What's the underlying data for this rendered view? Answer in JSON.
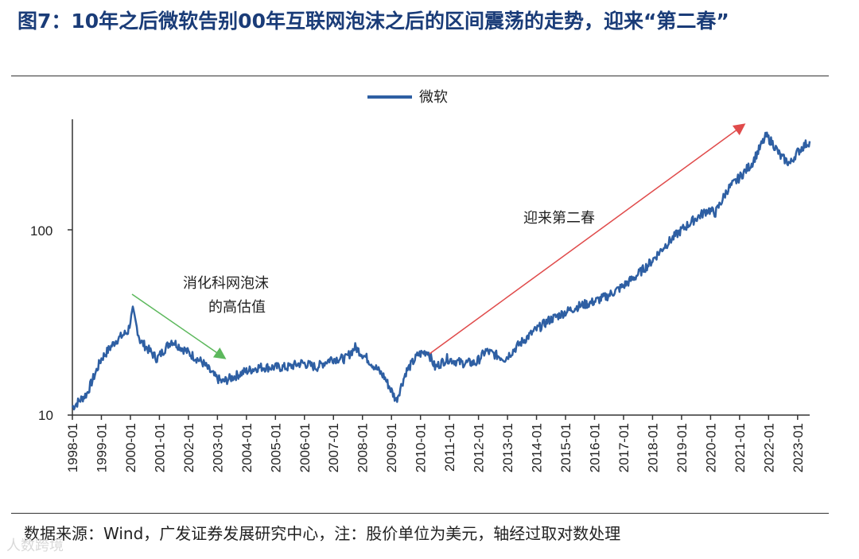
{
  "header": {
    "title": "图7：10年之后微软告别00年互联网泡沫之后的区间震荡的走势，迎来“第二春”"
  },
  "footer": {
    "source": "数据来源：Wind，广发证券发展研究中心，注：股价单位为美元，轴经过取对数处理",
    "watermark": "人数跨境"
  },
  "chart_data": {
    "type": "line",
    "title": "",
    "xlabel": "",
    "ylabel": "",
    "y_scale": "log",
    "ylim": [
      10,
      380
    ],
    "y_ticks": [
      "10",
      "100"
    ],
    "xlim": [
      "1998-01",
      "2023-06"
    ],
    "x_ticks": [
      "1998-01",
      "1999-01",
      "2000-01",
      "2001-01",
      "2002-01",
      "2003-01",
      "2004-01",
      "2005-01",
      "2006-01",
      "2007-01",
      "2008-01",
      "2009-01",
      "2010-01",
      "2011-01",
      "2012-01",
      "2013-01",
      "2014-01",
      "2015-01",
      "2016-01",
      "2017-01",
      "2018-01",
      "2019-01",
      "2020-01",
      "2021-01",
      "2022-01",
      "2023-01"
    ],
    "legend": {
      "position": "top-center",
      "entries": [
        "微软"
      ]
    },
    "series": [
      {
        "name": "微软",
        "color": "#2e5fa3",
        "x": [
          "1998-01",
          "1998-07",
          "1999-01",
          "1999-07",
          "1999-12",
          "2000-02",
          "2000-05",
          "2000-12",
          "2001-06",
          "2001-12",
          "2002-07",
          "2002-12",
          "2003-03",
          "2003-12",
          "2004-06",
          "2004-12",
          "2005-06",
          "2005-12",
          "2006-06",
          "2006-12",
          "2007-06",
          "2007-10",
          "2008-03",
          "2008-10",
          "2009-03",
          "2009-07",
          "2009-12",
          "2010-04",
          "2010-07",
          "2010-12",
          "2011-06",
          "2011-12",
          "2012-04",
          "2012-12",
          "2013-06",
          "2013-12",
          "2014-06",
          "2014-12",
          "2015-06",
          "2015-12",
          "2016-06",
          "2016-12",
          "2017-06",
          "2017-12",
          "2018-06",
          "2018-12",
          "2019-06",
          "2019-12",
          "2020-03",
          "2020-08",
          "2020-12",
          "2021-06",
          "2021-12",
          "2022-03",
          "2022-06",
          "2022-10",
          "2022-12",
          "2023-03",
          "2023-06"
        ],
        "values": [
          11,
          13,
          20,
          25,
          28,
          36,
          25,
          20,
          25,
          22,
          19,
          16,
          15,
          17,
          18,
          18,
          18,
          19,
          18,
          20,
          20,
          23,
          20,
          16,
          12,
          17,
          21,
          22,
          18,
          20,
          19,
          19,
          22,
          20,
          24,
          28,
          32,
          35,
          38,
          40,
          43,
          48,
          55,
          65,
          80,
          95,
          110,
          125,
          120,
          160,
          180,
          220,
          310,
          280,
          240,
          220,
          245,
          270,
          290
        ]
      }
    ],
    "annotations": [
      {
        "text_lines": [
          "消化科网泡沫",
          "的高估值"
        ],
        "arrow_color": "#5cb85c"
      },
      {
        "text_lines": [
          "迎来第二春"
        ],
        "arrow_color": "#e04b4b"
      }
    ]
  }
}
